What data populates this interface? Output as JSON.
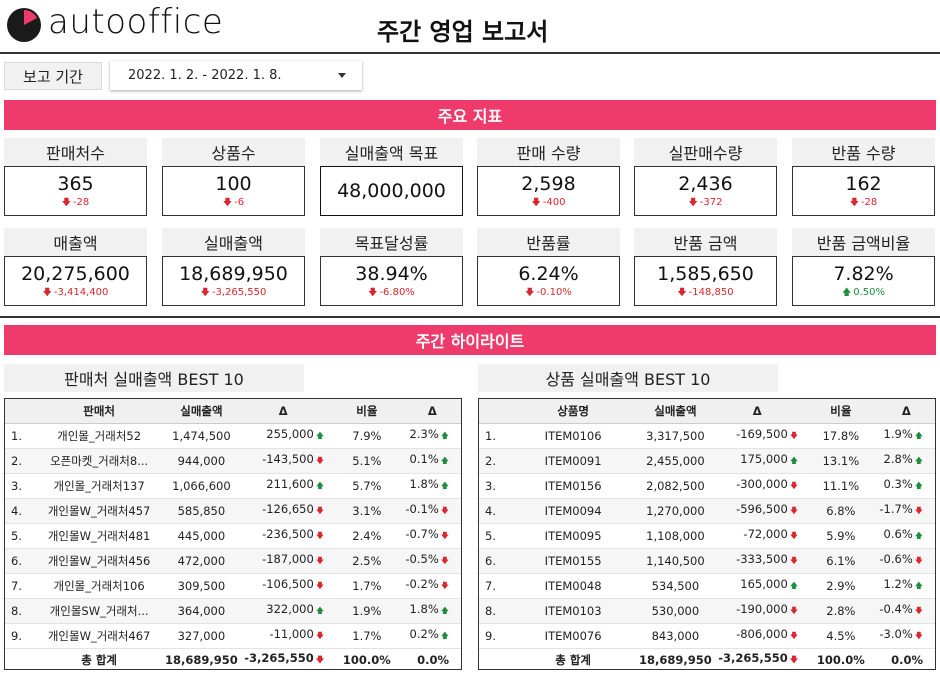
{
  "header": {
    "brand": "autooffice",
    "title": "주간 영업 보고서",
    "colors": {
      "accent": "#ef3a6c",
      "logo": "#1a1a1a"
    }
  },
  "period": {
    "label": "보고 기간",
    "value": "2022. 1. 2. - 2022. 1. 8."
  },
  "sections": {
    "kpi_title": "주요 지표",
    "highlight_title": "주간 하이라이트",
    "store_title": "판매처 실매출액 BEST 10",
    "product_title": "상품 실매출액 BEST 10"
  },
  "kpis": [
    {
      "label": "판매처수",
      "value": "365",
      "delta": "-28",
      "dir": "down"
    },
    {
      "label": "상품수",
      "value": "100",
      "delta": "-6",
      "dir": "down"
    },
    {
      "label": "실매출액 목표",
      "value": "48,000,000",
      "delta": "",
      "dir": "none"
    },
    {
      "label": "판매 수량",
      "value": "2,598",
      "delta": "-400",
      "dir": "down"
    },
    {
      "label": "실판매수량",
      "value": "2,436",
      "delta": "-372",
      "dir": "down"
    },
    {
      "label": "반품 수량",
      "value": "162",
      "delta": "-28",
      "dir": "down"
    },
    {
      "label": "매출액",
      "value": "20,275,600",
      "delta": "-3,414,400",
      "dir": "down"
    },
    {
      "label": "실매출액",
      "value": "18,689,950",
      "delta": "-3,265,550",
      "dir": "down"
    },
    {
      "label": "목표달성률",
      "value": "38.94%",
      "delta": "-6.80%",
      "dir": "down"
    },
    {
      "label": "반품률",
      "value": "6.24%",
      "delta": "-0.10%",
      "dir": "down"
    },
    {
      "label": "반품 금액",
      "value": "1,585,650",
      "delta": "-148,850",
      "dir": "down"
    },
    {
      "label": "반품 금액비율",
      "value": "7.82%",
      "delta": "0.50%",
      "dir": "up"
    }
  ],
  "store_table": {
    "headers": [
      "판매처",
      "실매출액",
      "Δ",
      "비율",
      "Δ"
    ],
    "rows": [
      {
        "no": "1.",
        "name": "개인몰_거래처52",
        "amount": "1,474,500",
        "delta": "255,000",
        "delta_dir": "up",
        "ratio": "7.9%",
        "ratio_delta": "2.3%",
        "ratio_dir": "up"
      },
      {
        "no": "2.",
        "name": "오픈마켓_거래처8...",
        "amount": "944,000",
        "delta": "-143,500",
        "delta_dir": "down",
        "ratio": "5.1%",
        "ratio_delta": "0.1%",
        "ratio_dir": "up"
      },
      {
        "no": "3.",
        "name": "개인몰_거래처137",
        "amount": "1,066,600",
        "delta": "211,600",
        "delta_dir": "up",
        "ratio": "5.7%",
        "ratio_delta": "1.8%",
        "ratio_dir": "up"
      },
      {
        "no": "4.",
        "name": "개인몰W_거래처457",
        "amount": "585,850",
        "delta": "-126,650",
        "delta_dir": "down",
        "ratio": "3.1%",
        "ratio_delta": "-0.1%",
        "ratio_dir": "down"
      },
      {
        "no": "5.",
        "name": "개인몰W_거래처481",
        "amount": "445,000",
        "delta": "-236,500",
        "delta_dir": "down",
        "ratio": "2.4%",
        "ratio_delta": "-0.7%",
        "ratio_dir": "down"
      },
      {
        "no": "6.",
        "name": "개인몰W_거래처456",
        "amount": "472,000",
        "delta": "-187,000",
        "delta_dir": "down",
        "ratio": "2.5%",
        "ratio_delta": "-0.5%",
        "ratio_dir": "down"
      },
      {
        "no": "7.",
        "name": "개인몰_거래처106",
        "amount": "309,500",
        "delta": "-106,500",
        "delta_dir": "down",
        "ratio": "1.7%",
        "ratio_delta": "-0.2%",
        "ratio_dir": "down"
      },
      {
        "no": "8.",
        "name": "개인몰SW_거래처...",
        "amount": "364,000",
        "delta": "322,000",
        "delta_dir": "up",
        "ratio": "1.9%",
        "ratio_delta": "1.8%",
        "ratio_dir": "up"
      },
      {
        "no": "9.",
        "name": "개인몰W_거래처467",
        "amount": "327,000",
        "delta": "-11,000",
        "delta_dir": "down",
        "ratio": "1.7%",
        "ratio_delta": "0.2%",
        "ratio_dir": "up"
      }
    ],
    "total": {
      "label": "총 합계",
      "amount": "18,689,950",
      "delta": "-3,265,550",
      "delta_dir": "down",
      "ratio": "100.0%",
      "ratio_delta": "0.0%"
    }
  },
  "product_table": {
    "headers": [
      "상품명",
      "실매출액",
      "Δ",
      "비율",
      "Δ"
    ],
    "rows": [
      {
        "no": "1.",
        "name": "ITEM0106",
        "amount": "3,317,500",
        "delta": "-169,500",
        "delta_dir": "down",
        "ratio": "17.8%",
        "ratio_delta": "1.9%",
        "ratio_dir": "up"
      },
      {
        "no": "2.",
        "name": "ITEM0091",
        "amount": "2,455,000",
        "delta": "175,000",
        "delta_dir": "up",
        "ratio": "13.1%",
        "ratio_delta": "2.8%",
        "ratio_dir": "up"
      },
      {
        "no": "3.",
        "name": "ITEM0156",
        "amount": "2,082,500",
        "delta": "-300,000",
        "delta_dir": "down",
        "ratio": "11.1%",
        "ratio_delta": "0.3%",
        "ratio_dir": "up"
      },
      {
        "no": "4.",
        "name": "ITEM0094",
        "amount": "1,270,000",
        "delta": "-596,500",
        "delta_dir": "down",
        "ratio": "6.8%",
        "ratio_delta": "-1.7%",
        "ratio_dir": "down"
      },
      {
        "no": "5.",
        "name": "ITEM0095",
        "amount": "1,108,000",
        "delta": "-72,000",
        "delta_dir": "down",
        "ratio": "5.9%",
        "ratio_delta": "0.6%",
        "ratio_dir": "up"
      },
      {
        "no": "6.",
        "name": "ITEM0155",
        "amount": "1,140,500",
        "delta": "-333,500",
        "delta_dir": "down",
        "ratio": "6.1%",
        "ratio_delta": "-0.6%",
        "ratio_dir": "down"
      },
      {
        "no": "7.",
        "name": "ITEM0048",
        "amount": "534,500",
        "delta": "165,000",
        "delta_dir": "up",
        "ratio": "2.9%",
        "ratio_delta": "1.2%",
        "ratio_dir": "up"
      },
      {
        "no": "8.",
        "name": "ITEM0103",
        "amount": "530,000",
        "delta": "-190,000",
        "delta_dir": "down",
        "ratio": "2.8%",
        "ratio_delta": "-0.4%",
        "ratio_dir": "down"
      },
      {
        "no": "9.",
        "name": "ITEM0076",
        "amount": "843,000",
        "delta": "-806,000",
        "delta_dir": "down",
        "ratio": "4.5%",
        "ratio_delta": "-3.0%",
        "ratio_dir": "down"
      }
    ],
    "total": {
      "label": "총 합계",
      "amount": "18,689,950",
      "delta": "-3,265,550",
      "delta_dir": "down",
      "ratio": "100.0%",
      "ratio_delta": "0.0%"
    }
  }
}
